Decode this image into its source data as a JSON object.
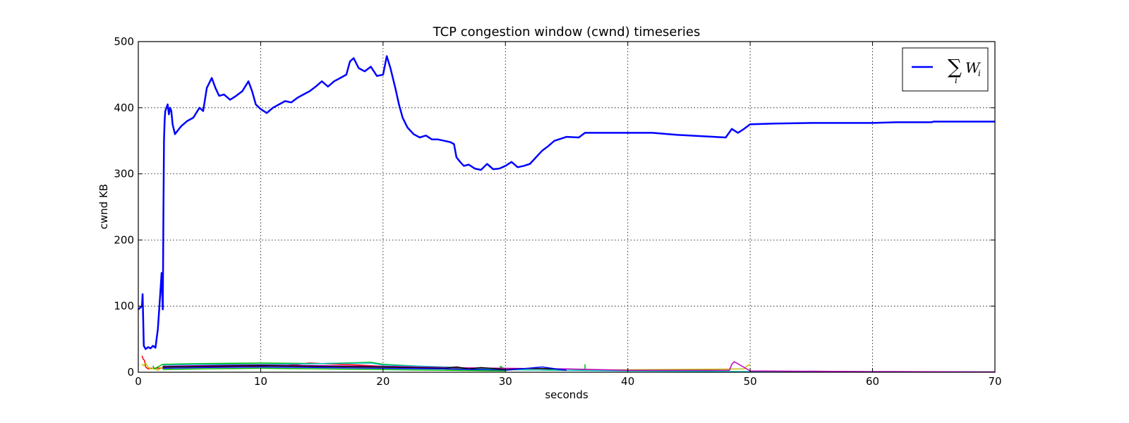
{
  "chart_data": {
    "type": "line",
    "title": "TCP congestion window (cwnd) timeseries",
    "xlabel": "seconds",
    "ylabel": "cwnd KB",
    "xlim": [
      0,
      70
    ],
    "ylim": [
      0,
      500
    ],
    "xticks": [
      0,
      10,
      20,
      30,
      40,
      50,
      60,
      70
    ],
    "yticks": [
      0,
      100,
      200,
      300,
      400,
      500
    ],
    "grid": true,
    "legend_position": "top-right",
    "legend": {
      "sigma": "∑",
      "sub": "i",
      "term": "W",
      "term_sub": "i"
    },
    "series": [
      {
        "name": "∑i Wi",
        "color": "#0000ff",
        "width": 2.5,
        "x": [
          0,
          0.3,
          0.35,
          0.45,
          0.6,
          0.8,
          1.0,
          1.2,
          1.4,
          1.6,
          1.8,
          1.9,
          2.0,
          2.05,
          2.1,
          2.15,
          2.2,
          2.3,
          2.4,
          2.5,
          2.6,
          2.7,
          2.8,
          3.0,
          3.2,
          3.5,
          4.0,
          4.5,
          5.0,
          5.3,
          5.6,
          6.0,
          6.3,
          6.6,
          7.0,
          7.5,
          8.0,
          8.5,
          9.0,
          9.3,
          9.6,
          10.0,
          10.5,
          11.0,
          11.5,
          12.0,
          12.5,
          13.0,
          13.5,
          14.0,
          14.5,
          15.0,
          15.5,
          16.0,
          16.5,
          17.0,
          17.3,
          17.6,
          18.0,
          18.5,
          19.0,
          19.5,
          20.0,
          20.3,
          20.6,
          21.0,
          21.3,
          21.6,
          22.0,
          22.5,
          23.0,
          23.5,
          24.0,
          24.5,
          25.0,
          25.5,
          25.8,
          26.0,
          26.3,
          26.6,
          27.0,
          27.5,
          28.0,
          28.5,
          29.0,
          29.5,
          30.0,
          30.5,
          31.0,
          31.5,
          32.0,
          32.5,
          33.0,
          33.5,
          34.0,
          34.5,
          35.0,
          36.0,
          36.5,
          38.0,
          40.0,
          42.0,
          44.0,
          46.0,
          48.0,
          48.5,
          49.0,
          49.5,
          50.0,
          50.1,
          52.0,
          55.0,
          58.0,
          60.0,
          62.0,
          64.8,
          65.0,
          68.0,
          70.0
        ],
        "y": [
          95,
          100,
          118,
          40,
          35,
          38,
          36,
          40,
          37,
          65,
          120,
          150,
          95,
          240,
          350,
          380,
          395,
          400,
          405,
          390,
          400,
          395,
          375,
          360,
          365,
          372,
          380,
          385,
          400,
          395,
          430,
          445,
          430,
          418,
          420,
          412,
          418,
          425,
          440,
          425,
          405,
          398,
          392,
          400,
          405,
          410,
          408,
          415,
          420,
          425,
          432,
          440,
          432,
          440,
          445,
          450,
          470,
          475,
          460,
          455,
          462,
          448,
          450,
          478,
          460,
          430,
          405,
          385,
          370,
          360,
          355,
          358,
          352,
          352,
          350,
          348,
          345,
          325,
          318,
          312,
          314,
          308,
          306,
          315,
          307,
          308,
          312,
          318,
          310,
          312,
          315,
          325,
          335,
          342,
          350,
          353,
          356,
          355,
          362,
          362,
          362,
          362,
          359,
          357,
          355,
          368,
          362,
          368,
          375,
          375,
          376,
          377,
          377,
          377,
          378,
          378,
          379,
          379,
          379
        ]
      },
      {
        "name": "",
        "color": "#ff0000",
        "width": 1.5,
        "x": [
          0.3,
          0.4,
          0.5,
          0.6,
          0.8,
          1.0,
          12,
          13,
          14,
          15,
          18,
          20,
          24
        ],
        "y": [
          25,
          20,
          18,
          8,
          5,
          6,
          10,
          12,
          14,
          13,
          11,
          9,
          8
        ]
      },
      {
        "name": "",
        "color": "#bfbf00",
        "width": 1.5,
        "x": [
          0.3,
          0.45,
          0.6,
          0.8,
          1.0,
          1.3,
          1.6,
          2.0,
          5,
          10,
          15,
          20,
          25,
          30,
          35,
          49.5,
          49.7,
          50.0
        ],
        "y": [
          12,
          10,
          14,
          8,
          5,
          6,
          3,
          8,
          7,
          8,
          9,
          7,
          5,
          4,
          3,
          5,
          9,
          12
        ]
      },
      {
        "name": "",
        "color": "#00bf00",
        "width": 1.5,
        "x": [
          1.2,
          1.3,
          2.0,
          5,
          10,
          15,
          19,
          20,
          25,
          29.5,
          29.6,
          30,
          35,
          36.5,
          36.5
        ],
        "y": [
          10,
          5,
          12,
          13,
          14,
          13,
          15,
          12,
          7,
          3,
          9,
          4,
          3,
          3,
          12
        ]
      },
      {
        "name": "",
        "color": "#00bfbf",
        "width": 1.5,
        "x": [
          2.0,
          5,
          10,
          15,
          19,
          20,
          25,
          30,
          35,
          40,
          50,
          60,
          70
        ],
        "y": [
          11,
          12,
          12,
          13,
          14,
          11,
          8,
          4,
          3,
          2,
          1,
          1,
          0.5
        ]
      },
      {
        "name": "",
        "color": "#bf00bf",
        "width": 1.5,
        "x": [
          2.0,
          5,
          10,
          15,
          20,
          25,
          30,
          35,
          40,
          48.3,
          48.5,
          48.7,
          50,
          60,
          70
        ],
        "y": [
          9,
          10,
          11,
          10,
          9,
          7,
          6,
          5,
          3,
          3,
          12,
          16,
          2,
          1,
          0.5
        ]
      },
      {
        "name": "",
        "color": "#000000",
        "width": 1.5,
        "x": [
          2.0,
          5,
          10,
          15,
          20,
          22,
          25,
          26,
          27,
          28,
          30,
          32,
          34,
          35
        ],
        "y": [
          8,
          9,
          10,
          9,
          8,
          7,
          6,
          8,
          5,
          7,
          4,
          6,
          5,
          3
        ]
      },
      {
        "name": "",
        "color": "#0000ff",
        "width": 1.5,
        "x": [
          2.0,
          5,
          10,
          15,
          20,
          25,
          30,
          33,
          35
        ],
        "y": [
          6,
          7,
          8,
          7,
          6,
          5,
          3,
          8,
          3
        ]
      },
      {
        "name": "",
        "color": "#00bf00",
        "width": 1.5,
        "x": [
          2.0,
          5,
          10,
          15,
          20,
          25,
          30
        ],
        "y": [
          4,
          5,
          6,
          5,
          4,
          3,
          2
        ]
      }
    ]
  }
}
